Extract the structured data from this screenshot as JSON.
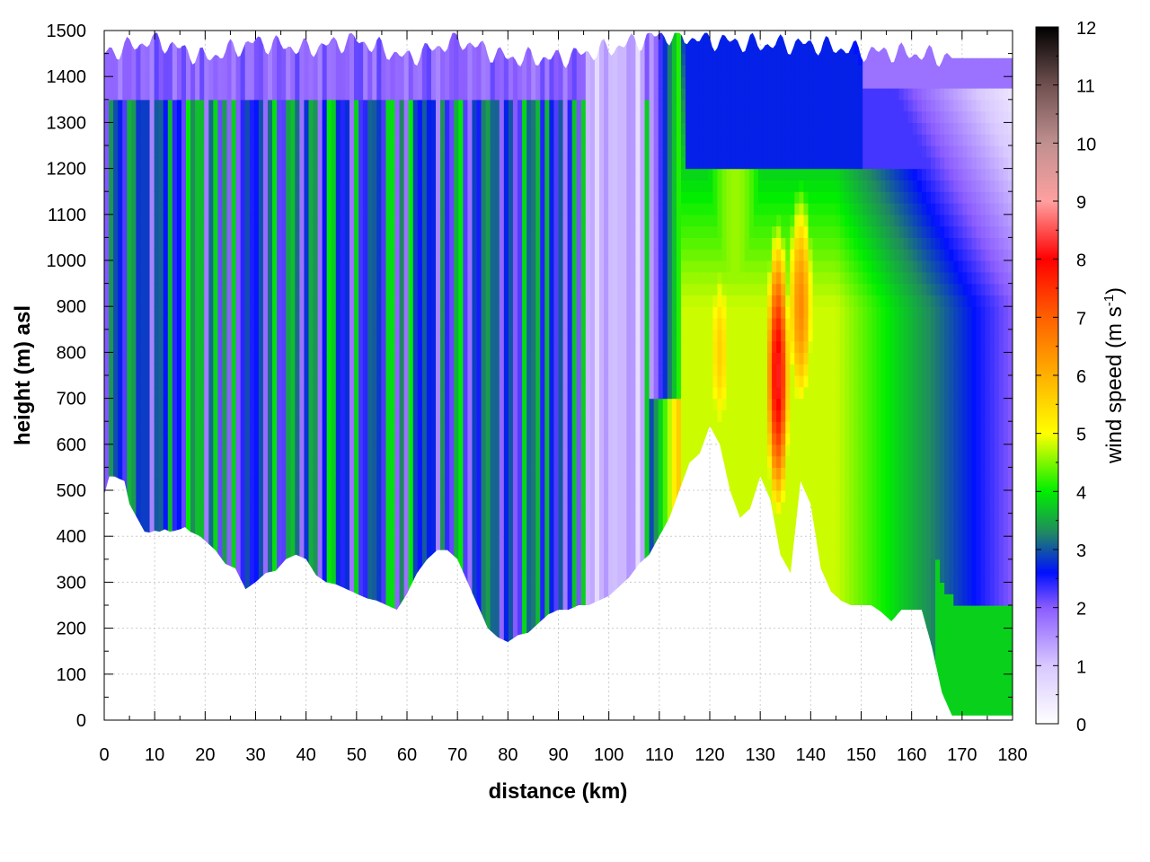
{
  "chart_data": {
    "type": "heatmap",
    "title": "",
    "xlabel": "distance (km)",
    "ylabel": "height (m) asl",
    "xlim": [
      0,
      180
    ],
    "ylim": [
      0,
      1500
    ],
    "x_ticks": [
      "0",
      "10",
      "20",
      "30",
      "40",
      "50",
      "60",
      "70",
      "80",
      "90",
      "100",
      "110",
      "120",
      "130",
      "140",
      "150",
      "160",
      "170",
      "180"
    ],
    "y_ticks": [
      "0",
      "100",
      "200",
      "300",
      "400",
      "500",
      "600",
      "700",
      "800",
      "900",
      "1000",
      "1100",
      "1200",
      "1300",
      "1400",
      "1500"
    ],
    "grid": true,
    "colorbar": {
      "label_main": "wind speed (m s",
      "label_sup": "-1",
      "label_end": ")",
      "range": [
        0,
        12
      ],
      "ticks": [
        "0",
        "1",
        "2",
        "3",
        "4",
        "5",
        "6",
        "7",
        "8",
        "9",
        "10",
        "11",
        "12"
      ],
      "stops": [
        {
          "v": 0,
          "c": "#ffffff"
        },
        {
          "v": 1,
          "c": "#d8c8ff"
        },
        {
          "v": 2,
          "c": "#8a5cff"
        },
        {
          "v": 2.6,
          "c": "#0010ff"
        },
        {
          "v": 3.3,
          "c": "#208a60"
        },
        {
          "v": 4,
          "c": "#00ee00"
        },
        {
          "v": 5,
          "c": "#ffff00"
        },
        {
          "v": 6,
          "c": "#ffb000"
        },
        {
          "v": 7,
          "c": "#ff6000"
        },
        {
          "v": 8,
          "c": "#ff0000"
        },
        {
          "v": 9,
          "c": "#ffa0a0"
        },
        {
          "v": 10,
          "c": "#c09090"
        },
        {
          "v": 11,
          "c": "#705050"
        },
        {
          "v": 12,
          "c": "#000000"
        }
      ]
    },
    "terrain": {
      "x": [
        0,
        1,
        2,
        3,
        4,
        5,
        6,
        7,
        8,
        9,
        10,
        11,
        12,
        13,
        14,
        15,
        16,
        17,
        18,
        19,
        20,
        22,
        24,
        26,
        28,
        30,
        32,
        34,
        36,
        38,
        40,
        42,
        44,
        46,
        48,
        50,
        52,
        54,
        56,
        58,
        60,
        62,
        64,
        66,
        68,
        70,
        72,
        74,
        76,
        78,
        80,
        82,
        84,
        86,
        88,
        90,
        92,
        94,
        96,
        98,
        100,
        102,
        104,
        106,
        108,
        110,
        112,
        114,
        116,
        118,
        120,
        122,
        124,
        126,
        128,
        130,
        132,
        134,
        136,
        138,
        140,
        142,
        144,
        146,
        148,
        150,
        152,
        154,
        156,
        158,
        160,
        162,
        164,
        166,
        168,
        170,
        172,
        174,
        176,
        178,
        180
      ],
      "y": [
        490,
        530,
        530,
        525,
        520,
        470,
        450,
        430,
        410,
        408,
        412,
        410,
        415,
        410,
        412,
        415,
        420,
        410,
        405,
        400,
        390,
        370,
        340,
        330,
        285,
        300,
        320,
        325,
        350,
        360,
        350,
        315,
        300,
        295,
        285,
        275,
        265,
        260,
        250,
        240,
        275,
        320,
        350,
        370,
        370,
        350,
        300,
        250,
        200,
        180,
        170,
        185,
        190,
        210,
        230,
        240,
        240,
        250,
        250,
        260,
        270,
        290,
        310,
        340,
        360,
        400,
        440,
        500,
        560,
        580,
        640,
        600,
        500,
        440,
        460,
        530,
        480,
        360,
        320,
        520,
        470,
        330,
        280,
        260,
        250,
        250,
        250,
        235,
        215,
        240,
        240,
        240,
        160,
        60,
        10,
        10,
        10,
        10,
        10,
        10,
        10
      ]
    },
    "top_surface": {
      "x": [
        0,
        10,
        20,
        30,
        40,
        50,
        60,
        70,
        80,
        90,
        100,
        110,
        120,
        130,
        140,
        150,
        160,
        168,
        180
      ],
      "y": [
        1450,
        1480,
        1440,
        1475,
        1460,
        1480,
        1440,
        1480,
        1440,
        1440,
        1460,
        1490,
        1480,
        1470,
        1470,
        1455,
        1450,
        1440,
        1440
      ]
    },
    "stripes_region": {
      "x_range": [
        0,
        110
      ],
      "description_values": "wind speed varies between 1 and 4 m/s in vertical bands"
    },
    "jet_region": {
      "x_range": [
        112,
        145
      ],
      "core_x": [
        122,
        133,
        138
      ],
      "core_values": [
        6.5,
        8,
        7
      ]
    }
  }
}
